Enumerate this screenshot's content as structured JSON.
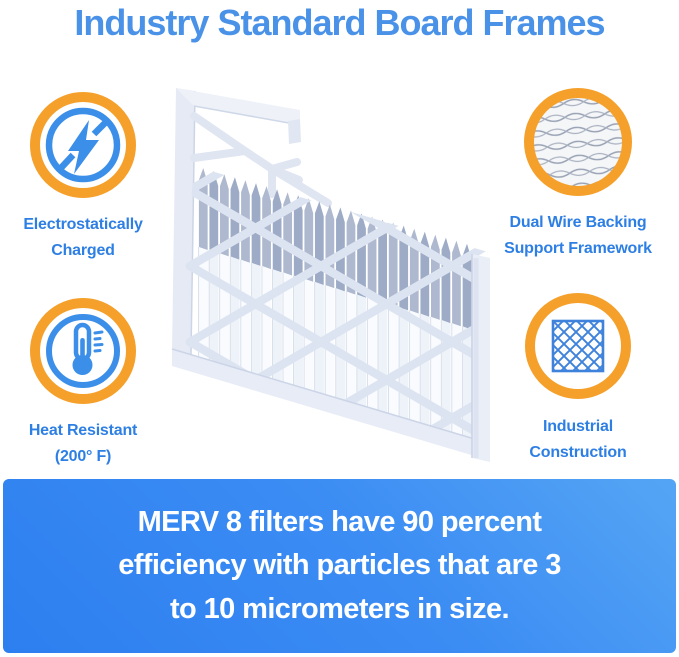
{
  "header": {
    "title": "Industry Standard Board Frames"
  },
  "features": {
    "electrostatic": {
      "icon": "lightning-icon",
      "label1": "Electrostatically",
      "label2": "Charged"
    },
    "wire_backing": {
      "icon": "wire-mesh-icon",
      "label1": "Dual Wire Backing",
      "label2": "Support Framework"
    },
    "heat": {
      "icon": "thermometer-icon",
      "label1": "Heat Resistant",
      "label2": "(200° F)"
    },
    "industrial": {
      "icon": "diamond-lattice-icon",
      "label1": "Industrial",
      "label2": "Construction"
    }
  },
  "banner": {
    "line1": "MERV 8 filters have 90 percent",
    "line2": "efficiency with particles that are 3",
    "line3": "to 10 micrometers in size."
  },
  "colors": {
    "title_blue": "#4A92E8",
    "label_blue": "#2E7FE4",
    "accent_orange": "#F5A02B",
    "icon_blue": "#3C8FE9",
    "banner_gradient_light": "#55A5F5",
    "banner_gradient_dark": "#2D7FF0",
    "banner_text": "#FFFFFF"
  }
}
